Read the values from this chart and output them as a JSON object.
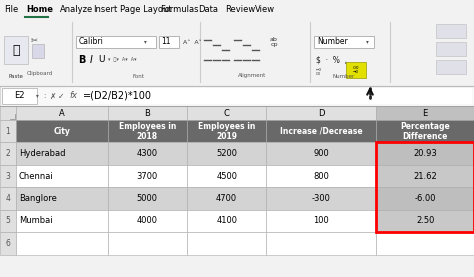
{
  "ribbon_tabs": [
    "File",
    "Home",
    "Analyze",
    "Insert",
    "Page Layout",
    "Formulas",
    "Data",
    "Review",
    "View"
  ],
  "active_tab": "Home",
  "formula_bar_cell": "E2",
  "formula_bar_formula": "=(D2/B2)*100",
  "col_headers": [
    "A",
    "B",
    "C",
    "D",
    "E"
  ],
  "row_numbers": [
    "1",
    "2",
    "3",
    "4",
    "5",
    "6"
  ],
  "header_row": [
    "City",
    "Employees in\n2018",
    "Employees in\n2019",
    "Increase /Decrease",
    "Percentage\nDifference"
  ],
  "data_rows": [
    [
      "Hyderabad",
      "4300",
      "5200",
      "900",
      "20.93"
    ],
    [
      "Chennai",
      "3700",
      "4500",
      "800",
      "21.62"
    ],
    [
      "Banglore",
      "5000",
      "4700",
      "-300",
      "-6.00"
    ],
    [
      "Mumbai",
      "4000",
      "4100",
      "100",
      "2.50"
    ]
  ],
  "header_bg": "#696969",
  "header_fg": "#ffffff",
  "row_even_bg": "#ffffff",
  "row_odd_bg": "#d3d3d3",
  "col_e_highlight_bg": "#c8c8c8",
  "col_e_border_color": "#ff0000",
  "grid_color": "#aaaaaa",
  "ribbon_bg": "#f2f2f2",
  "formula_bar_bg": "#ffffff",
  "tab_underline_color": "#217346",
  "highlight_yellow_bg": "#e2e000",
  "number_group_label": "Number",
  "col_hdr_bg": "#e8e8e8",
  "col_hdr_selected_bg": "#c0c0c0",
  "sheet_bg": "#ffffff",
  "ribbon_sections": [
    "Clipboard",
    "Font",
    "Alignment",
    "Number"
  ]
}
